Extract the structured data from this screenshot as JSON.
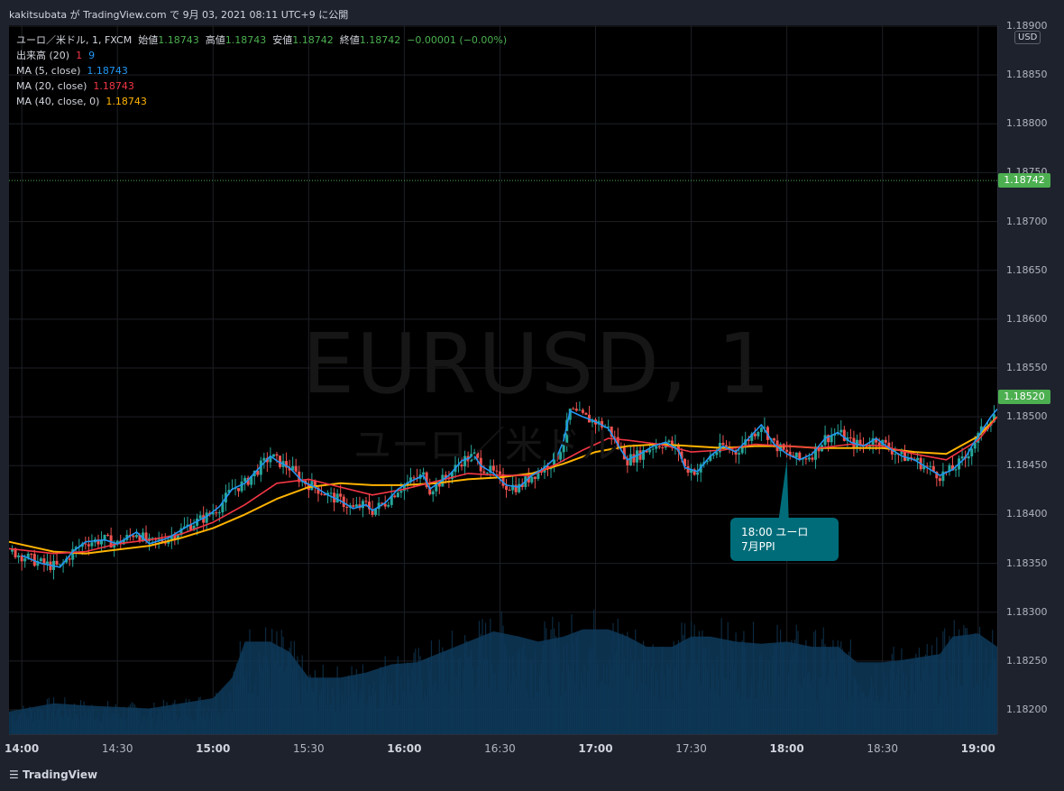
{
  "header": {
    "publish_line": "kakitsubata が TradingView.com で 9月 03, 2021 08:11 UTC+9 に公開"
  },
  "legend": {
    "main_label": "ユーロ／米ドル, 1, FXCM",
    "open_label": "始値",
    "open_value": "1.18743",
    "high_label": "高値",
    "high_value": "1.18743",
    "low_label": "安値",
    "low_value": "1.18742",
    "close_label": "終値",
    "close_value": "1.18742",
    "change": "−0.00001 (−0.00%)",
    "volume_label": "出来高 (20)",
    "volume_v1": "1",
    "volume_v2": "9",
    "ma5_label": "MA (5, close)",
    "ma5_value": "1.18743",
    "ma20_label": "MA (20, close)",
    "ma20_value": "1.18743",
    "ma40_label": "MA (40, close, 0)",
    "ma40_value": "1.18743"
  },
  "watermark": {
    "symbol": "EURUSD, 1",
    "name": "ユーロ／米ドル"
  },
  "currency_badge": "USD",
  "current_price_tag": "1.18742",
  "last_price_tag": "1.18520",
  "note": {
    "line1": "18:00 ユーロ",
    "line2": "7月PPI"
  },
  "footer_brand": "TradingView",
  "colors": {
    "up": "#26a69a",
    "down": "#ef5350",
    "ma5": "#2196f3",
    "ma20": "#f23645",
    "ma40": "#ffb300",
    "volume_area": "#0e3a5a",
    "price_tag": "#4caf50",
    "note_bg": "#006c79"
  },
  "chart_data": {
    "type": "candlestick",
    "symbol": "EURUSD",
    "interval": "1",
    "y_ticks": [
      "1.18200",
      "1.18250",
      "1.18300",
      "1.18350",
      "1.18400",
      "1.18450",
      "1.18500",
      "1.18550",
      "1.18600",
      "1.18650",
      "1.18700",
      "1.18750",
      "1.18800",
      "1.18850",
      "1.18900"
    ],
    "ylim": [
      1.1818,
      1.189
    ],
    "x_ticks": [
      {
        "label": "14:00",
        "bold": true
      },
      {
        "label": "14:30",
        "bold": false
      },
      {
        "label": "15:00",
        "bold": true
      },
      {
        "label": "15:30",
        "bold": false
      },
      {
        "label": "16:00",
        "bold": true
      },
      {
        "label": "16:30",
        "bold": false
      },
      {
        "label": "17:00",
        "bold": true
      },
      {
        "label": "17:30",
        "bold": false
      },
      {
        "label": "18:00",
        "bold": true
      },
      {
        "label": "18:30",
        "bold": false
      },
      {
        "label": "19:00",
        "bold": true
      }
    ],
    "x_range_minutes": [
      -4,
      306
    ],
    "price_path": [
      [
        0,
        1.18358
      ],
      [
        6,
        1.1835
      ],
      [
        12,
        1.18346
      ],
      [
        16,
        1.18362
      ],
      [
        20,
        1.18372
      ],
      [
        26,
        1.18374
      ],
      [
        30,
        1.1837
      ],
      [
        36,
        1.18382
      ],
      [
        40,
        1.1837
      ],
      [
        46,
        1.18376
      ],
      [
        52,
        1.18388
      ],
      [
        58,
        1.18398
      ],
      [
        62,
        1.18408
      ],
      [
        66,
        1.18426
      ],
      [
        70,
        1.18432
      ],
      [
        74,
        1.18446
      ],
      [
        78,
        1.1846
      ],
      [
        80,
        1.18455
      ],
      [
        84,
        1.18448
      ],
      [
        88,
        1.18434
      ],
      [
        92,
        1.18428
      ],
      [
        96,
        1.1842
      ],
      [
        100,
        1.18414
      ],
      [
        104,
        1.18406
      ],
      [
        108,
        1.1841
      ],
      [
        110,
        1.18404
      ],
      [
        114,
        1.18412
      ],
      [
        118,
        1.18426
      ],
      [
        122,
        1.18434
      ],
      [
        126,
        1.1844
      ],
      [
        128,
        1.18426
      ],
      [
        134,
        1.1844
      ],
      [
        138,
        1.18455
      ],
      [
        142,
        1.1846
      ],
      [
        144,
        1.1845
      ],
      [
        148,
        1.18442
      ],
      [
        152,
        1.1843
      ],
      [
        156,
        1.18428
      ],
      [
        160,
        1.1844
      ],
      [
        164,
        1.18448
      ],
      [
        168,
        1.1846
      ],
      [
        170,
        1.18476
      ],
      [
        172,
        1.18506
      ],
      [
        176,
        1.185
      ],
      [
        180,
        1.18495
      ],
      [
        184,
        1.18488
      ],
      [
        188,
        1.18466
      ],
      [
        190,
        1.18456
      ],
      [
        194,
        1.18462
      ],
      [
        198,
        1.1847
      ],
      [
        202,
        1.18474
      ],
      [
        206,
        1.18466
      ],
      [
        208,
        1.18448
      ],
      [
        212,
        1.18444
      ],
      [
        216,
        1.1846
      ],
      [
        220,
        1.1847
      ],
      [
        224,
        1.18464
      ],
      [
        228,
        1.18478
      ],
      [
        232,
        1.18492
      ],
      [
        236,
        1.18472
      ],
      [
        240,
        1.18462
      ],
      [
        244,
        1.18456
      ],
      [
        248,
        1.18462
      ],
      [
        252,
        1.18478
      ],
      [
        256,
        1.18484
      ],
      [
        260,
        1.18474
      ],
      [
        264,
        1.1847
      ],
      [
        268,
        1.18478
      ],
      [
        272,
        1.18468
      ],
      [
        276,
        1.1846
      ],
      [
        280,
        1.18456
      ],
      [
        284,
        1.18448
      ],
      [
        288,
        1.1844
      ],
      [
        292,
        1.18446
      ],
      [
        296,
        1.18458
      ],
      [
        298,
        1.1847
      ],
      [
        300,
        1.1848
      ],
      [
        304,
        1.185
      ],
      [
        306,
        1.18508
      ]
    ],
    "ma20_path": [
      [
        -4,
        1.18365
      ],
      [
        10,
        1.1836
      ],
      [
        20,
        1.18362
      ],
      [
        30,
        1.1837
      ],
      [
        40,
        1.18374
      ],
      [
        50,
        1.1838
      ],
      [
        60,
        1.18392
      ],
      [
        70,
        1.1841
      ],
      [
        80,
        1.18432
      ],
      [
        90,
        1.18436
      ],
      [
        100,
        1.18428
      ],
      [
        110,
        1.1842
      ],
      [
        120,
        1.18426
      ],
      [
        130,
        1.18434
      ],
      [
        140,
        1.18442
      ],
      [
        150,
        1.1844
      ],
      [
        160,
        1.1844
      ],
      [
        168,
        1.18452
      ],
      [
        176,
        1.18466
      ],
      [
        184,
        1.18478
      ],
      [
        190,
        1.18476
      ],
      [
        200,
        1.18472
      ],
      [
        210,
        1.18464
      ],
      [
        220,
        1.18466
      ],
      [
        230,
        1.18472
      ],
      [
        240,
        1.1847
      ],
      [
        250,
        1.18468
      ],
      [
        260,
        1.18472
      ],
      [
        270,
        1.1847
      ],
      [
        280,
        1.18462
      ],
      [
        290,
        1.18456
      ],
      [
        300,
        1.18476
      ],
      [
        306,
        1.185
      ]
    ],
    "ma40_path": [
      [
        -4,
        1.18372
      ],
      [
        10,
        1.18362
      ],
      [
        20,
        1.1836
      ],
      [
        30,
        1.18364
      ],
      [
        40,
        1.18368
      ],
      [
        50,
        1.18376
      ],
      [
        60,
        1.18386
      ],
      [
        70,
        1.184
      ],
      [
        80,
        1.18416
      ],
      [
        90,
        1.18428
      ],
      [
        100,
        1.18432
      ],
      [
        110,
        1.1843
      ],
      [
        120,
        1.1843
      ],
      [
        130,
        1.18432
      ],
      [
        140,
        1.18436
      ],
      [
        150,
        1.18438
      ],
      [
        160,
        1.18442
      ],
      [
        170,
        1.18452
      ],
      [
        180,
        1.18464
      ],
      [
        190,
        1.1847
      ],
      [
        200,
        1.18472
      ],
      [
        210,
        1.1847
      ],
      [
        220,
        1.18468
      ],
      [
        230,
        1.1847
      ],
      [
        240,
        1.1847
      ],
      [
        250,
        1.18468
      ],
      [
        260,
        1.18468
      ],
      [
        270,
        1.18468
      ],
      [
        280,
        1.18464
      ],
      [
        290,
        1.18462
      ],
      [
        300,
        1.1848
      ],
      [
        306,
        1.185
      ]
    ],
    "volume_ma_path": [
      [
        -4,
        0.22
      ],
      [
        10,
        0.3
      ],
      [
        20,
        0.28
      ],
      [
        40,
        0.25
      ],
      [
        50,
        0.3
      ],
      [
        60,
        0.35
      ],
      [
        66,
        0.55
      ],
      [
        70,
        0.9
      ],
      [
        78,
        0.9
      ],
      [
        84,
        0.8
      ],
      [
        90,
        0.55
      ],
      [
        100,
        0.55
      ],
      [
        108,
        0.6
      ],
      [
        116,
        0.68
      ],
      [
        124,
        0.7
      ],
      [
        132,
        0.8
      ],
      [
        140,
        0.9
      ],
      [
        148,
        1.0
      ],
      [
        156,
        0.95
      ],
      [
        162,
        0.9
      ],
      [
        170,
        0.95
      ],
      [
        176,
        1.02
      ],
      [
        184,
        1.02
      ],
      [
        190,
        0.95
      ],
      [
        196,
        0.85
      ],
      [
        204,
        0.85
      ],
      [
        210,
        0.95
      ],
      [
        216,
        0.95
      ],
      [
        224,
        0.9
      ],
      [
        232,
        0.88
      ],
      [
        240,
        0.9
      ],
      [
        248,
        0.85
      ],
      [
        256,
        0.85
      ],
      [
        262,
        0.7
      ],
      [
        270,
        0.7
      ],
      [
        276,
        0.72
      ],
      [
        282,
        0.75
      ],
      [
        288,
        0.78
      ],
      [
        292,
        0.95
      ],
      [
        300,
        0.98
      ],
      [
        306,
        0.85
      ]
    ]
  }
}
